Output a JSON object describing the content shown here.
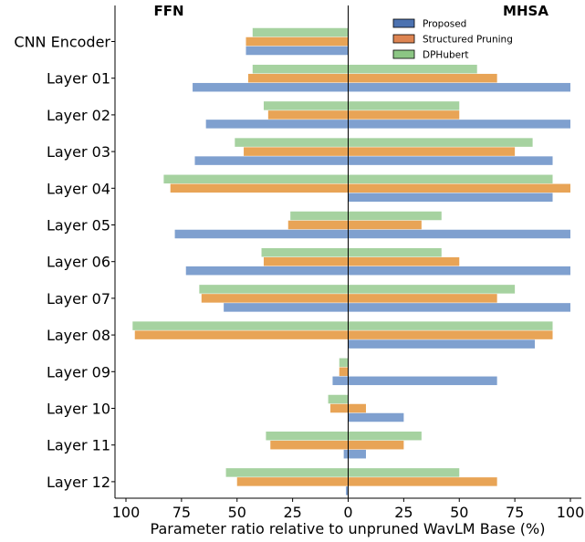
{
  "chart_data": {
    "type": "bar",
    "orientation": "horizontal-diverging",
    "categories": [
      "CNN Encoder",
      "Layer 01",
      "Layer 02",
      "Layer 03",
      "Layer 04",
      "Layer 05",
      "Layer 06",
      "Layer 07",
      "Layer 08",
      "Layer 09",
      "Layer 10",
      "Layer 11",
      "Layer 12"
    ],
    "left_label": "FFN",
    "right_label": "MHSA",
    "xlabel": "Parameter ratio relative to unpruned WavLM Base (%)",
    "xticks": [
      "100",
      "75",
      "50",
      "25",
      "0",
      "25",
      "50",
      "75",
      "100"
    ],
    "xlim": [
      -100,
      100
    ],
    "legend_position": "top-right",
    "series": [
      {
        "name": "Proposed",
        "color": "#7fa0cf",
        "legend_color": "#4c72b0",
        "ffn": [
          46,
          70,
          64,
          69,
          0,
          78,
          73,
          56,
          0,
          7,
          0,
          2,
          1
        ],
        "mhsa": [
          0,
          100,
          100,
          92,
          92,
          100,
          100,
          100,
          84,
          67,
          25,
          8,
          0
        ]
      },
      {
        "name": "Structured Pruning",
        "color": "#e8a456",
        "legend_color": "#dd8452",
        "ffn": [
          46,
          45,
          36,
          47,
          80,
          27,
          38,
          66,
          96,
          4,
          8,
          35,
          50
        ],
        "mhsa": [
          0,
          67,
          50,
          75,
          100,
          33,
          50,
          67,
          92,
          0,
          8,
          25,
          67
        ]
      },
      {
        "name": "DPHubert",
        "color": "#a6d2a0",
        "legend_color": "#8cc684",
        "ffn": [
          43,
          43,
          38,
          51,
          83,
          26,
          39,
          67,
          97,
          4,
          9,
          37,
          55
        ],
        "mhsa": [
          0,
          58,
          50,
          83,
          92,
          42,
          42,
          75,
          92,
          0,
          0,
          33,
          50
        ]
      }
    ]
  }
}
